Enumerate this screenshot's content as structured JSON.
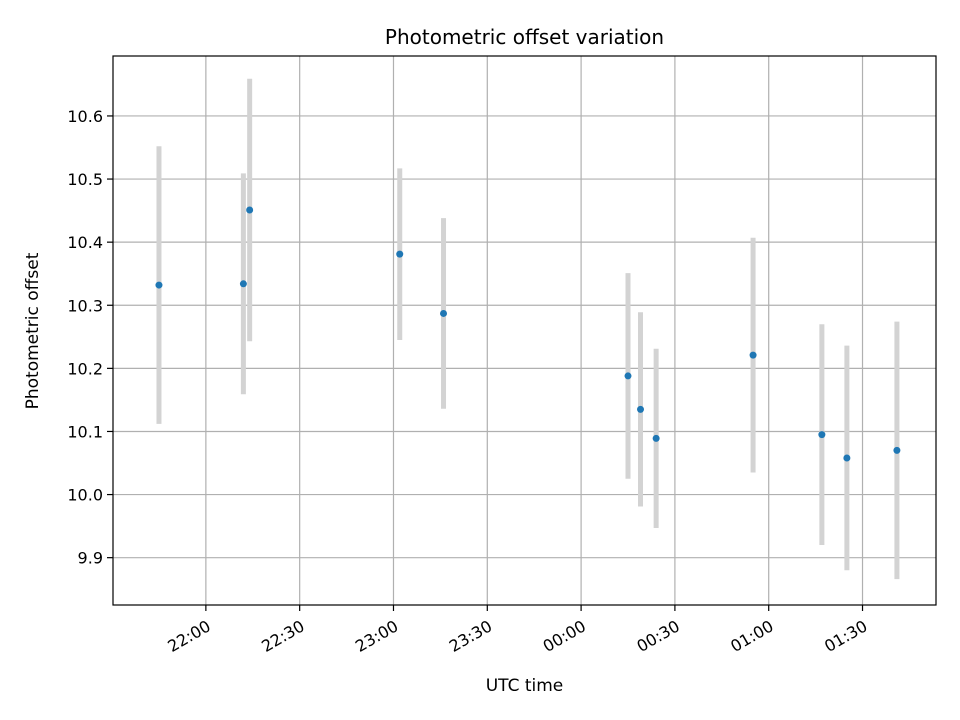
{
  "chart_data": {
    "type": "scatter",
    "title": "Photometric offset variation",
    "xlabel": "UTC time",
    "ylabel": "Photometric offset",
    "x_ticks": [
      "22:00",
      "22:30",
      "23:00",
      "23:30",
      "00:00",
      "00:30",
      "01:00",
      "01:30"
    ],
    "x_tick_minutes": [
      1320,
      1350,
      1380,
      1410,
      1440,
      1470,
      1500,
      1530
    ],
    "xlim_minutes": [
      1290.3,
      1553.5
    ],
    "y_ticks": [
      "9.9",
      "10.0",
      "10.1",
      "10.2",
      "10.3",
      "10.4",
      "10.5",
      "10.6"
    ],
    "y_tick_values": [
      9.9,
      10.0,
      10.1,
      10.2,
      10.3,
      10.4,
      10.5,
      10.6
    ],
    "ylim": [
      9.825,
      10.695
    ],
    "grid": true,
    "colors": {
      "point": "#1f77b4",
      "errorbar": "#d3d3d3",
      "grid": "#b0b0b0"
    },
    "points": [
      {
        "x": "21:45",
        "y": 10.332,
        "err": 0.22
      },
      {
        "x": "22:12",
        "y": 10.334,
        "err": 0.175
      },
      {
        "x": "22:14",
        "y": 10.451,
        "err": 0.208
      },
      {
        "x": "23:02",
        "y": 10.381,
        "err": 0.136
      },
      {
        "x": "23:16",
        "y": 10.287,
        "err": 0.151
      },
      {
        "x": "00:15",
        "y": 10.188,
        "err": 0.163
      },
      {
        "x": "00:19",
        "y": 10.135,
        "err": 0.154
      },
      {
        "x": "00:24",
        "y": 10.089,
        "err": 0.142
      },
      {
        "x": "00:55",
        "y": 10.221,
        "err": 0.186
      },
      {
        "x": "01:17",
        "y": 10.095,
        "err": 0.175
      },
      {
        "x": "01:25",
        "y": 10.058,
        "err": 0.178
      },
      {
        "x": "01:41",
        "y": 10.07,
        "err": 0.204
      }
    ]
  }
}
